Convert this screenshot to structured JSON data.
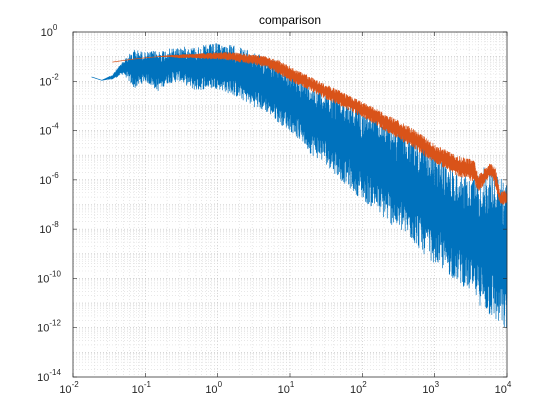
{
  "figure": {
    "background": "#ffffff"
  },
  "chart_data": {
    "type": "line",
    "title": "comparison",
    "xlabel": "",
    "ylabel": "",
    "xscale": "log",
    "yscale": "log",
    "xlim": [
      0.01,
      10000
    ],
    "ylim": [
      1e-14,
      1
    ],
    "grid": true,
    "minor_grid": true,
    "legend": "none",
    "x_ticks": [
      {
        "value": 0.01,
        "base": "10",
        "exp": "-2"
      },
      {
        "value": 0.1,
        "base": "10",
        "exp": "-1"
      },
      {
        "value": 1,
        "base": "10",
        "exp": "0"
      },
      {
        "value": 10,
        "base": "10",
        "exp": "1"
      },
      {
        "value": 100,
        "base": "10",
        "exp": "2"
      },
      {
        "value": 1000,
        "base": "10",
        "exp": "3"
      },
      {
        "value": 10000,
        "base": "10",
        "exp": "4"
      }
    ],
    "y_ticks": [
      {
        "value": 1e-14,
        "base": "10",
        "exp": "-14"
      },
      {
        "value": 1e-12,
        "base": "10",
        "exp": "-12"
      },
      {
        "value": 1e-10,
        "base": "10",
        "exp": "-10"
      },
      {
        "value": 1e-08,
        "base": "10",
        "exp": "-8"
      },
      {
        "value": 1e-06,
        "base": "10",
        "exp": "-6"
      },
      {
        "value": 0.0001,
        "base": "10",
        "exp": "-4"
      },
      {
        "value": 0.01,
        "base": "10",
        "exp": "-2"
      },
      {
        "value": 1,
        "base": "10",
        "exp": "0"
      }
    ],
    "series": [
      {
        "color": "#0072BD",
        "style": "noisy band",
        "x": [
          0.018,
          0.025,
          0.035,
          0.05,
          0.07,
          0.1,
          0.15,
          0.2,
          0.3,
          0.5,
          0.7,
          1,
          1.5,
          2,
          3,
          5,
          7,
          10,
          15,
          20,
          30,
          50,
          70,
          100,
          150,
          200,
          300,
          500,
          700,
          1000,
          1500,
          2000,
          3000,
          4000,
          5000,
          7000,
          10000
        ],
        "upper": [
          0.015,
          0.011,
          0.018,
          0.07,
          0.2,
          0.15,
          0.18,
          0.2,
          0.25,
          0.25,
          0.3,
          0.35,
          0.3,
          0.25,
          0.15,
          0.09,
          0.06,
          0.03,
          0.016,
          0.01,
          0.005,
          0.0025,
          0.0015,
          0.0009,
          0.0005,
          0.0003,
          0.00015,
          6e-05,
          3e-05,
          1.2e-05,
          5e-06,
          2.5e-06,
          1.2e-06,
          2e-06,
          4e-06,
          2e-06,
          8e-07
        ],
        "lower": [
          0.015,
          0.011,
          0.012,
          0.02,
          0.005,
          0.01,
          0.004,
          0.008,
          0.01,
          0.004,
          0.005,
          0.005,
          0.003,
          0.002,
          0.001,
          0.0005,
          0.0002,
          0.0001,
          3e-05,
          1e-05,
          5e-06,
          1e-06,
          4e-07,
          1.5e-07,
          6e-08,
          2.5e-08,
          1e-08,
          3e-09,
          1e-09,
          4e-10,
          1.5e-10,
          8e-11,
          3e-11,
          1e-11,
          4e-12,
          1.5e-12,
          5e-13
        ]
      },
      {
        "color": "#D95319",
        "style": "band",
        "x": [
          0.035,
          0.05,
          0.07,
          0.1,
          0.15,
          0.2,
          0.3,
          0.5,
          0.7,
          1,
          1.5,
          2,
          3,
          5,
          7,
          10,
          15,
          20,
          30,
          50,
          70,
          100,
          150,
          200,
          300,
          500,
          700,
          1000,
          1500,
          2000,
          3000,
          3500,
          4000,
          5000,
          6000,
          7000,
          8000,
          10000
        ],
        "upper": [
          0.06,
          0.07,
          0.08,
          0.09,
          0.1,
          0.11,
          0.12,
          0.13,
          0.14,
          0.15,
          0.15,
          0.14,
          0.12,
          0.1,
          0.07,
          0.04,
          0.022,
          0.014,
          0.008,
          0.004,
          0.0025,
          0.0014,
          0.0008,
          0.0005,
          0.00028,
          0.00012,
          6e-05,
          2.8e-05,
          1.5e-05,
          1e-05,
          7e-06,
          7e-06,
          1.5e-06,
          3e-06,
          5e-06,
          3e-06,
          3e-07,
          4e-07
        ],
        "lower": [
          0.06,
          0.07,
          0.08,
          0.09,
          0.1,
          0.1,
          0.09,
          0.09,
          0.08,
          0.08,
          0.07,
          0.06,
          0.05,
          0.035,
          0.02,
          0.01,
          0.006,
          0.004,
          0.002,
          0.001,
          0.0006,
          0.00035,
          0.00018,
          0.0001,
          5e-05,
          2e-05,
          1e-05,
          5e-06,
          2.5e-06,
          1.5e-06,
          1e-06,
          8e-07,
          3e-07,
          8e-07,
          1.5e-06,
          5e-07,
          1e-07,
          1e-07
        ]
      }
    ]
  }
}
